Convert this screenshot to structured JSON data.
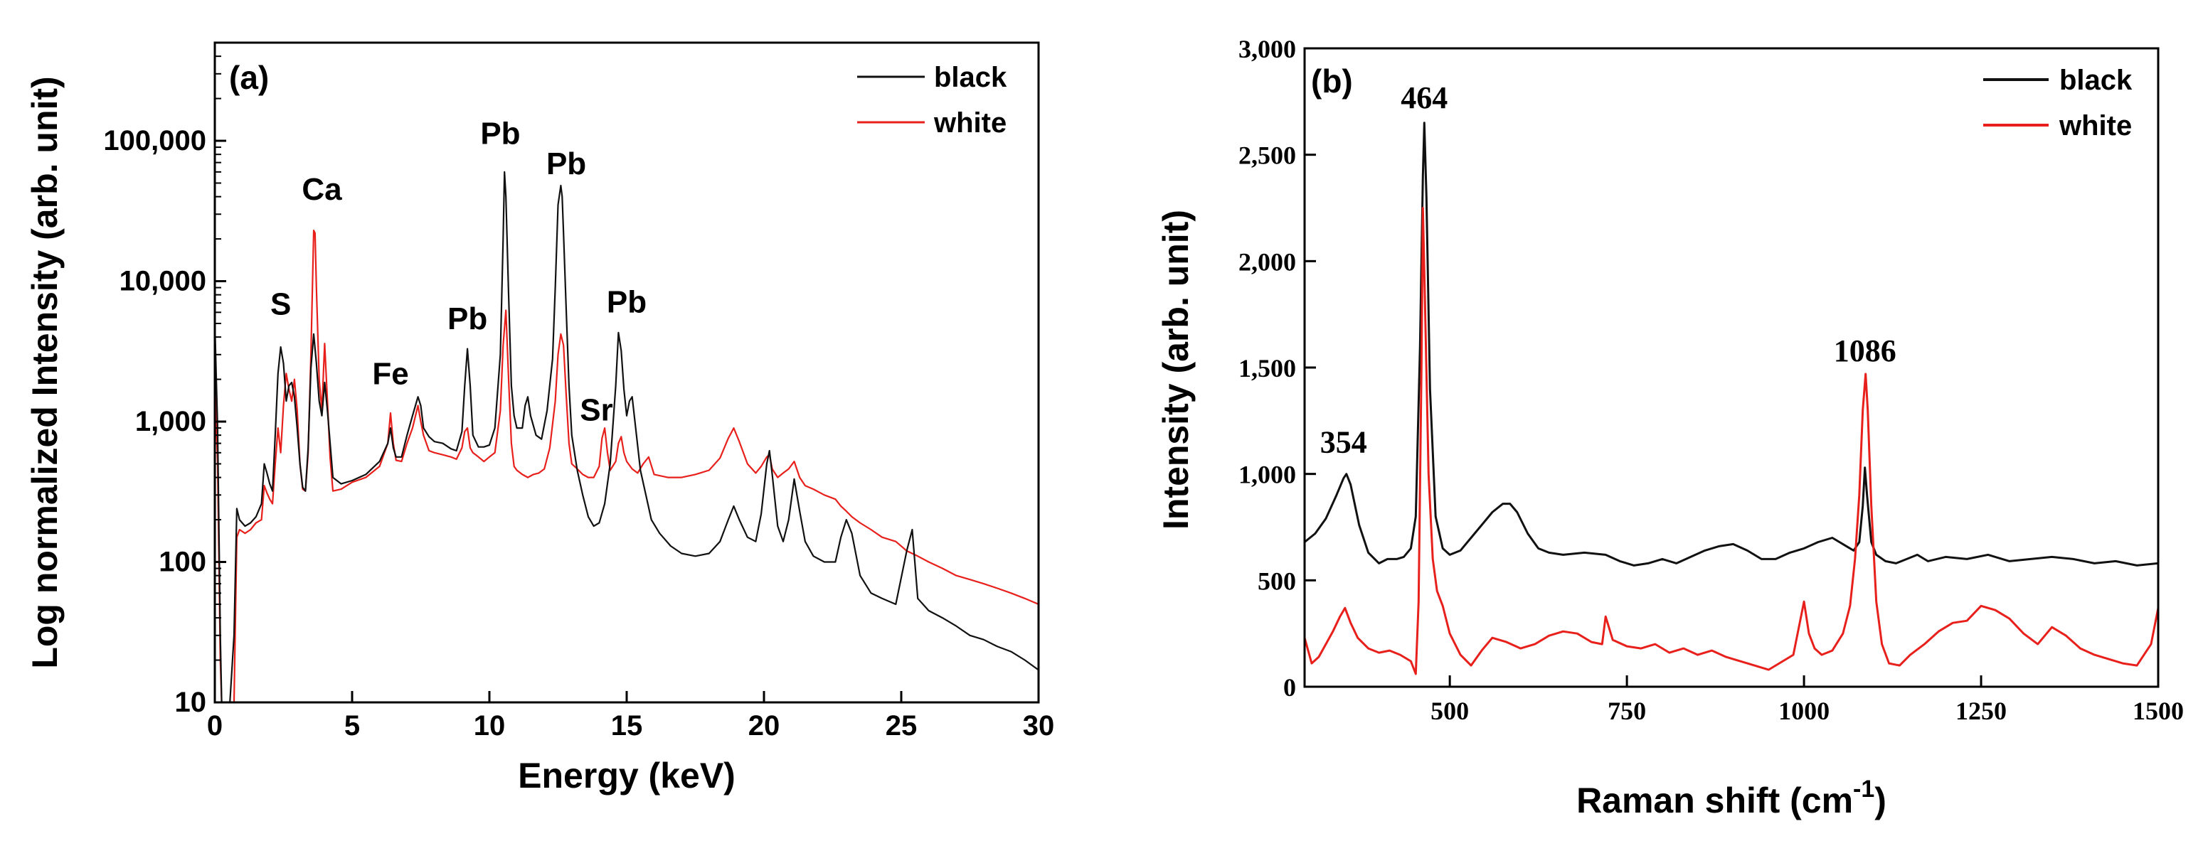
{
  "figure": {
    "background": "#ffffff"
  },
  "colors": {
    "black": "#111111",
    "red": "#e8201c",
    "axis": "#000000"
  },
  "chart_data": [
    {
      "panel": "(a)",
      "type": "line",
      "xscale": "linear",
      "yscale": "log",
      "xlabel": "Energy (keV)",
      "ylabel": "Log normalized Intensity (arb. unit)",
      "xlim": [
        0,
        30
      ],
      "ylim": [
        10,
        500000
      ],
      "xticks": [
        0,
        5,
        10,
        15,
        20,
        25,
        30
      ],
      "xtick_labels": [
        "0",
        "5",
        "10",
        "15",
        "20",
        "25",
        "30"
      ],
      "yticks": [
        10,
        100,
        1000,
        10000,
        100000
      ],
      "ytick_labels": [
        "10",
        "100",
        "1,000",
        "10,000",
        "100,000"
      ],
      "legend": {
        "position": "top-right",
        "entries": [
          {
            "label": "black",
            "series": "black"
          },
          {
            "label": "white",
            "series": "white"
          }
        ]
      },
      "series": [
        {
          "name": "black",
          "color_key": "black",
          "x": [
            0.0,
            0.1,
            0.2,
            0.25,
            0.4,
            0.55,
            0.7,
            0.8,
            0.9,
            1.1,
            1.3,
            1.5,
            1.7,
            1.8,
            1.9,
            2.0,
            2.1,
            2.2,
            2.3,
            2.4,
            2.5,
            2.6,
            2.7,
            2.8,
            2.9,
            3.0,
            3.1,
            3.2,
            3.3,
            3.4,
            3.5,
            3.6,
            3.7,
            3.8,
            3.9,
            4.0,
            4.1,
            4.2,
            4.3,
            4.6,
            5.0,
            5.5,
            6.0,
            6.3,
            6.4,
            6.5,
            6.6,
            6.8,
            7.0,
            7.2,
            7.4,
            7.5,
            7.6,
            7.8,
            8.0,
            8.3,
            8.6,
            8.8,
            9.0,
            9.1,
            9.2,
            9.3,
            9.4,
            9.6,
            9.8,
            10.0,
            10.2,
            10.4,
            10.5,
            10.55,
            10.6,
            10.7,
            10.8,
            10.9,
            11.0,
            11.2,
            11.3,
            11.4,
            11.5,
            11.7,
            11.9,
            12.1,
            12.3,
            12.4,
            12.5,
            12.6,
            12.65,
            12.7,
            12.8,
            12.9,
            13.0,
            13.2,
            13.4,
            13.6,
            13.8,
            14.0,
            14.2,
            14.4,
            14.6,
            14.7,
            14.8,
            14.9,
            15.0,
            15.1,
            15.2,
            15.3,
            15.5,
            15.7,
            15.9,
            16.2,
            16.6,
            17.0,
            17.5,
            18.0,
            18.4,
            18.7,
            18.9,
            19.1,
            19.4,
            19.7,
            19.9,
            20.1,
            20.2,
            20.3,
            20.5,
            20.7,
            20.9,
            21.1,
            21.3,
            21.5,
            21.8,
            22.2,
            22.6,
            22.8,
            23.0,
            23.2,
            23.5,
            23.9,
            24.3,
            24.8,
            25.2,
            25.4,
            25.6,
            26.0,
            26.5,
            27.0,
            27.5,
            28.0,
            28.5,
            29.0,
            29.5,
            30.0
          ],
          "y": [
            5000,
            900,
            30,
            10,
            10,
            10,
            30,
            240,
            200,
            180,
            190,
            210,
            260,
            500,
            430,
            360,
            320,
            800,
            2200,
            3400,
            2600,
            1400,
            1800,
            1900,
            1500,
            900,
            500,
            340,
            320,
            650,
            2400,
            4200,
            2600,
            1400,
            1100,
            1900,
            1200,
            700,
            400,
            360,
            380,
            420,
            520,
            700,
            900,
            650,
            560,
            560,
            800,
            1100,
            1500,
            1300,
            900,
            780,
            720,
            700,
            640,
            620,
            850,
            1800,
            3300,
            1800,
            800,
            660,
            660,
            680,
            900,
            3000,
            20000,
            60000,
            40000,
            8000,
            1800,
            1100,
            900,
            900,
            1300,
            1500,
            1100,
            800,
            750,
            1200,
            2800,
            9000,
            35000,
            48000,
            40000,
            22000,
            6000,
            1800,
            800,
            450,
            300,
            210,
            180,
            190,
            260,
            500,
            1800,
            4300,
            3200,
            1700,
            1100,
            1400,
            1500,
            1000,
            450,
            300,
            200,
            160,
            130,
            115,
            110,
            115,
            140,
            200,
            250,
            200,
            150,
            140,
            220,
            500,
            620,
            420,
            180,
            140,
            200,
            390,
            230,
            140,
            110,
            100,
            100,
            150,
            200,
            160,
            80,
            60,
            55,
            50,
            120,
            170,
            55,
            45,
            40,
            35,
            30,
            28,
            25,
            23,
            20,
            17
          ]
        },
        {
          "name": "white",
          "color_key": "red",
          "x": [
            0.0,
            0.1,
            0.2,
            0.25,
            0.4,
            0.55,
            0.7,
            0.8,
            0.9,
            1.1,
            1.3,
            1.5,
            1.7,
            1.8,
            1.9,
            2.0,
            2.1,
            2.2,
            2.3,
            2.4,
            2.5,
            2.6,
            2.7,
            2.8,
            2.9,
            3.0,
            3.1,
            3.2,
            3.3,
            3.4,
            3.5,
            3.6,
            3.65,
            3.7,
            3.8,
            3.9,
            4.0,
            4.1,
            4.2,
            4.3,
            4.6,
            5.0,
            5.5,
            6.0,
            6.3,
            6.4,
            6.5,
            6.6,
            6.8,
            7.0,
            7.2,
            7.4,
            7.5,
            7.6,
            7.8,
            8.0,
            8.3,
            8.6,
            8.8,
            9.0,
            9.1,
            9.2,
            9.3,
            9.4,
            9.6,
            9.8,
            10.0,
            10.2,
            10.4,
            10.5,
            10.6,
            10.7,
            10.8,
            10.9,
            11.0,
            11.2,
            11.4,
            11.6,
            11.8,
            12.0,
            12.2,
            12.4,
            12.5,
            12.6,
            12.7,
            12.8,
            12.9,
            13.0,
            13.2,
            13.4,
            13.6,
            13.8,
            14.0,
            14.1,
            14.2,
            14.3,
            14.4,
            14.6,
            14.7,
            14.8,
            14.9,
            15.0,
            15.2,
            15.4,
            15.6,
            15.8,
            16.0,
            16.5,
            17.0,
            17.5,
            18.0,
            18.4,
            18.7,
            18.9,
            19.1,
            19.4,
            19.7,
            19.9,
            20.1,
            20.2,
            20.3,
            20.5,
            20.7,
            20.9,
            21.1,
            21.3,
            21.5,
            21.8,
            22.2,
            22.6,
            22.8,
            23.0,
            23.2,
            23.5,
            23.9,
            24.3,
            24.8,
            25.2,
            25.6,
            26.0,
            26.5,
            27.0,
            27.5,
            28.0,
            28.5,
            29.0,
            29.5,
            30.0
          ],
          "y": [
            2000,
            500,
            20,
            10,
            10,
            10,
            10,
            150,
            170,
            160,
            170,
            190,
            200,
            350,
            310,
            280,
            260,
            500,
            900,
            600,
            1300,
            2200,
            1700,
            1400,
            2000,
            1200,
            500,
            330,
            320,
            600,
            3000,
            23000,
            22000,
            9000,
            2000,
            1200,
            3600,
            1400,
            550,
            320,
            330,
            370,
            400,
            480,
            700,
            1150,
            700,
            530,
            520,
            700,
            900,
            1300,
            1000,
            800,
            620,
            600,
            580,
            560,
            540,
            650,
            850,
            900,
            650,
            600,
            560,
            520,
            560,
            600,
            1200,
            3500,
            6200,
            2000,
            700,
            480,
            450,
            420,
            400,
            420,
            430,
            460,
            650,
            1400,
            3000,
            4200,
            3500,
            1500,
            700,
            500,
            460,
            420,
            400,
            400,
            480,
            760,
            900,
            600,
            450,
            520,
            700,
            780,
            600,
            520,
            460,
            430,
            500,
            560,
            420,
            400,
            400,
            420,
            450,
            550,
            760,
            900,
            720,
            500,
            430,
            480,
            560,
            580,
            460,
            400,
            430,
            460,
            520,
            400,
            350,
            330,
            300,
            280,
            250,
            230,
            210,
            190,
            170,
            150,
            140,
            120,
            110,
            100,
            90,
            80,
            75,
            70,
            65,
            60,
            55,
            50
          ]
        }
      ],
      "annotations": [
        {
          "text": "S",
          "x": 2.4,
          "y": 5800
        },
        {
          "text": "Ca",
          "x": 3.9,
          "y": 38000
        },
        {
          "text": "Fe",
          "x": 6.4,
          "y": 1850
        },
        {
          "text": "Pb",
          "x": 9.2,
          "y": 4550
        },
        {
          "text": "Pb",
          "x": 10.4,
          "y": 95000
        },
        {
          "text": "Pb",
          "x": 12.8,
          "y": 58000
        },
        {
          "text": "Sr",
          "x": 13.9,
          "y": 1020
        },
        {
          "text": "Pb",
          "x": 15.0,
          "y": 6000
        }
      ]
    },
    {
      "panel": "(b)",
      "type": "line",
      "xscale": "linear",
      "yscale": "linear",
      "xlabel": "Raman shift (cm",
      "xlabel_superscript": "-1",
      "xlabel_suffix": ")",
      "ylabel": "Intensity (arb. unit)",
      "xlim": [
        295,
        1500
      ],
      "ylim": [
        0,
        3000
      ],
      "xticks": [
        500,
        750,
        1000,
        1250,
        1500
      ],
      "xtick_labels": [
        "500",
        "750",
        "1000",
        "1250",
        "1500"
      ],
      "yticks": [
        0,
        500,
        1000,
        1500,
        2000,
        2500,
        3000
      ],
      "ytick_labels": [
        "0",
        "500",
        "1,000",
        "1,500",
        "2,000",
        "2,500",
        "3,000"
      ],
      "legend": {
        "position": "top-right",
        "entries": [
          {
            "label": "black",
            "series": "black"
          },
          {
            "label": "white",
            "series": "white"
          }
        ]
      },
      "series": [
        {
          "name": "black",
          "color_key": "black",
          "x": [
            295,
            310,
            325,
            340,
            350,
            354,
            360,
            372,
            385,
            400,
            412,
            425,
            435,
            445,
            452,
            458,
            462,
            464,
            467,
            472,
            480,
            490,
            500,
            515,
            530,
            545,
            560,
            575,
            585,
            595,
            610,
            625,
            640,
            660,
            690,
            720,
            740,
            760,
            780,
            800,
            820,
            840,
            860,
            880,
            900,
            920,
            940,
            960,
            980,
            1000,
            1020,
            1040,
            1050,
            1060,
            1070,
            1078,
            1083,
            1086,
            1089,
            1095,
            1102,
            1115,
            1130,
            1145,
            1160,
            1175,
            1200,
            1230,
            1260,
            1290,
            1320,
            1350,
            1380,
            1410,
            1440,
            1470,
            1500
          ],
          "y": [
            680,
            720,
            790,
            900,
            980,
            1000,
            950,
            760,
            630,
            580,
            600,
            600,
            610,
            650,
            800,
            1600,
            2400,
            2650,
            2300,
            1400,
            800,
            650,
            620,
            640,
            700,
            760,
            820,
            860,
            860,
            820,
            720,
            650,
            630,
            620,
            630,
            620,
            590,
            570,
            580,
            600,
            580,
            610,
            640,
            660,
            670,
            640,
            600,
            600,
            630,
            650,
            680,
            700,
            680,
            660,
            640,
            680,
            850,
            1030,
            900,
            680,
            620,
            590,
            580,
            600,
            620,
            590,
            610,
            600,
            620,
            590,
            600,
            610,
            600,
            580,
            590,
            570,
            580
          ]
        },
        {
          "name": "white",
          "color_key": "red",
          "x": [
            295,
            305,
            315,
            325,
            335,
            345,
            352,
            360,
            370,
            385,
            400,
            415,
            430,
            445,
            452,
            456,
            460,
            462,
            465,
            470,
            476,
            482,
            490,
            500,
            515,
            530,
            545,
            560,
            580,
            600,
            620,
            640,
            660,
            680,
            700,
            715,
            720,
            730,
            750,
            770,
            790,
            810,
            830,
            850,
            870,
            890,
            910,
            930,
            950,
            970,
            985,
            1000,
            1007,
            1015,
            1025,
            1040,
            1055,
            1065,
            1072,
            1078,
            1083,
            1087,
            1090,
            1095,
            1102,
            1110,
            1120,
            1135,
            1150,
            1170,
            1190,
            1210,
            1230,
            1250,
            1270,
            1290,
            1310,
            1330,
            1350,
            1370,
            1390,
            1410,
            1430,
            1450,
            1470,
            1490,
            1500
          ],
          "y": [
            230,
            110,
            140,
            200,
            260,
            330,
            370,
            300,
            230,
            180,
            160,
            170,
            150,
            120,
            60,
            400,
            1500,
            2250,
            1800,
            1000,
            600,
            450,
            380,
            250,
            150,
            100,
            170,
            230,
            210,
            180,
            200,
            240,
            260,
            250,
            210,
            200,
            330,
            220,
            190,
            180,
            200,
            160,
            180,
            150,
            170,
            140,
            120,
            100,
            80,
            120,
            150,
            400,
            250,
            180,
            150,
            170,
            250,
            380,
            600,
            900,
            1300,
            1470,
            1300,
            850,
            400,
            200,
            110,
            100,
            150,
            200,
            260,
            300,
            310,
            380,
            360,
            320,
            250,
            200,
            280,
            240,
            180,
            150,
            130,
            110,
            100,
            200,
            370
          ]
        }
      ],
      "annotations": [
        {
          "text": "354",
          "x": 350,
          "y": 1100
        },
        {
          "text": "464",
          "x": 464,
          "y": 2720
        },
        {
          "text": "1086",
          "x": 1086,
          "y": 1530
        }
      ]
    }
  ]
}
